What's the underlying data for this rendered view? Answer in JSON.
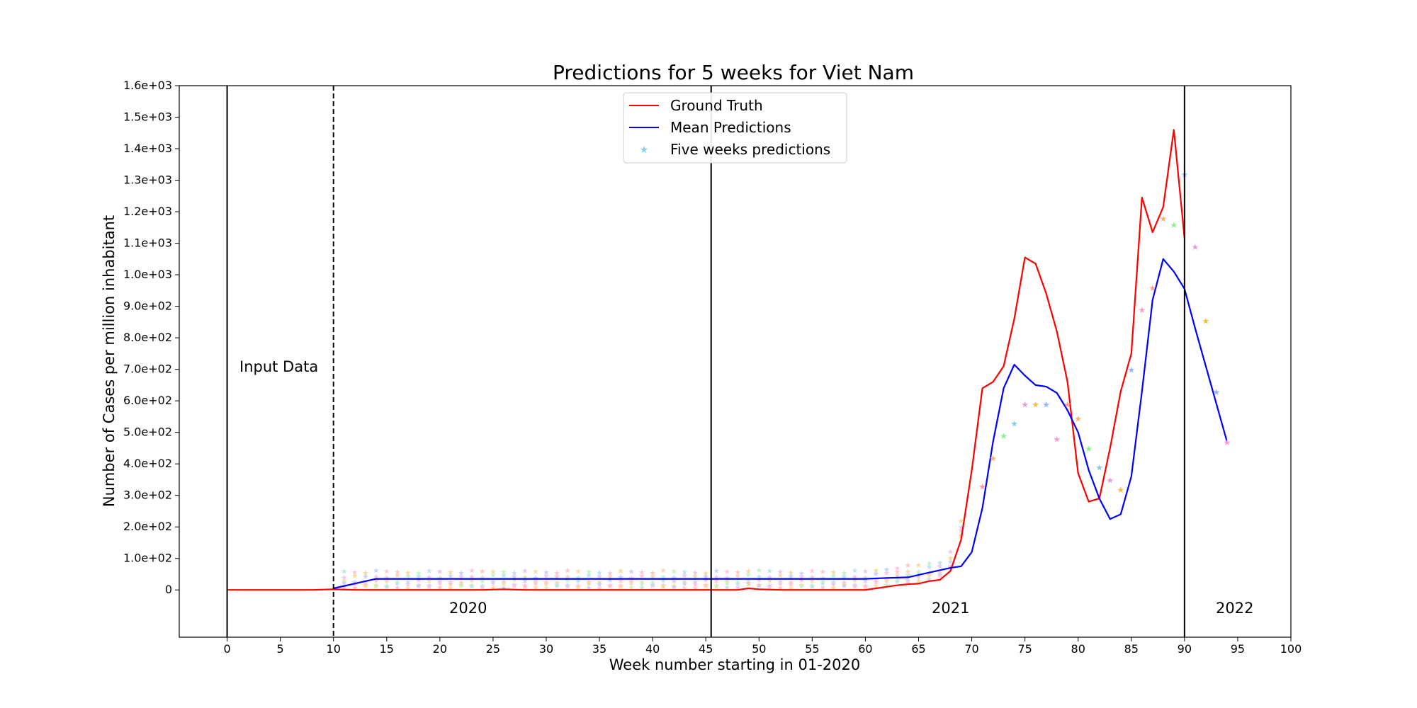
{
  "chart_data": {
    "type": "line",
    "title": "Predictions for 5 weeks for Viet Nam",
    "xlabel": "Week number starting in 01-2020",
    "ylabel": "Number of Cases per million inhabitant",
    "xlim": [
      -4.5,
      100
    ],
    "ylim": [
      -150,
      1600
    ],
    "x_ticks": [
      0,
      5,
      10,
      15,
      20,
      25,
      30,
      35,
      40,
      45,
      50,
      55,
      60,
      65,
      70,
      75,
      80,
      85,
      90,
      95,
      100
    ],
    "x_tick_labels": [
      "0",
      "5",
      "10",
      "15",
      "20",
      "25",
      "30",
      "35",
      "40",
      "45",
      "50",
      "55",
      "60",
      "65",
      "70",
      "75",
      "80",
      "85",
      "90",
      "95",
      "100"
    ],
    "y_ticks": [
      0,
      100,
      200,
      300,
      400,
      500,
      600,
      700,
      800,
      900,
      1000,
      1100,
      1200,
      1300,
      1400,
      1500,
      1600
    ],
    "y_tick_labels": [
      "0",
      "1.0e+02",
      "2.0e+02",
      "3.0e+02",
      "4.0e+02",
      "5.0e+02",
      "6.0e+02",
      "7.0e+02",
      "8.0e+02",
      "9.0e+02",
      "1.0e+03",
      "1.1e+03",
      "1.2e+03",
      "1.3e+03",
      "1.4e+03",
      "1.5e+03",
      "1.6e+03"
    ],
    "grid": false,
    "legend_position": "top-center",
    "series": [
      {
        "name": "Ground Truth",
        "style": "line",
        "color": "#ff0000",
        "x": [
          0,
          2,
          4,
          6,
          8,
          10,
          12,
          14,
          16,
          18,
          20,
          22,
          24,
          26,
          28,
          30,
          32,
          34,
          36,
          38,
          40,
          42,
          44,
          46,
          48,
          49,
          50,
          52,
          54,
          56,
          58,
          60,
          61,
          62,
          63,
          64,
          65,
          66,
          67,
          68,
          69,
          70,
          71,
          72,
          73,
          74,
          75,
          76,
          77,
          78,
          79,
          80,
          81,
          82,
          83,
          84,
          85,
          86,
          87,
          88,
          89,
          90
        ],
        "y": [
          0,
          0,
          0,
          0,
          0,
          2,
          0,
          0,
          0,
          0,
          0,
          0,
          0,
          2,
          0,
          0,
          0,
          0,
          0,
          0,
          0,
          0,
          0,
          0,
          0,
          5,
          2,
          0,
          0,
          0,
          0,
          0,
          5,
          10,
          15,
          18,
          20,
          28,
          32,
          60,
          160,
          380,
          640,
          660,
          710,
          860,
          1055,
          1035,
          940,
          820,
          660,
          370,
          280,
          290,
          450,
          630,
          750,
          1245,
          1135,
          1215,
          1460,
          1115
        ]
      },
      {
        "name": "Mean Predictions",
        "style": "line",
        "color": "#0000ff",
        "x": [
          10,
          12,
          14,
          16,
          18,
          20,
          22,
          24,
          26,
          28,
          30,
          32,
          34,
          36,
          38,
          40,
          42,
          44,
          46,
          48,
          50,
          52,
          54,
          56,
          58,
          60,
          62,
          64,
          66,
          68,
          69,
          70,
          71,
          72,
          73,
          74,
          75,
          76,
          77,
          78,
          79,
          80,
          81,
          82,
          83,
          84,
          85,
          86,
          87,
          88,
          89,
          90,
          91,
          92,
          93,
          94
        ],
        "y": [
          5,
          20,
          35,
          35,
          35,
          35,
          35,
          35,
          35,
          35,
          35,
          35,
          35,
          35,
          35,
          35,
          35,
          35,
          35,
          35,
          35,
          35,
          35,
          35,
          35,
          35,
          38,
          40,
          55,
          70,
          75,
          120,
          260,
          470,
          640,
          715,
          680,
          650,
          645,
          625,
          570,
          500,
          380,
          290,
          225,
          240,
          360,
          630,
          920,
          1050,
          1010,
          955,
          830,
          710,
          590,
          470
        ]
      },
      {
        "name": "Five weeks predictions",
        "style": "scatter-star",
        "color": "#87ceeb",
        "x": [
          71,
          72,
          73,
          74,
          75,
          76,
          77,
          78,
          79,
          80,
          81,
          82,
          83,
          84,
          85,
          86,
          87,
          88,
          89,
          90,
          91,
          92,
          93,
          94
        ],
        "y": [
          330,
          420,
          490,
          530,
          590,
          590,
          590,
          480,
          590,
          545,
          450,
          390,
          350,
          320,
          700,
          890,
          960,
          1180,
          1160,
          1320,
          1090,
          855,
          630,
          470
        ]
      }
    ],
    "annotations": [
      "Input Data",
      "2020",
      "2021",
      "2022"
    ],
    "vertical_lines": [
      {
        "x": 0,
        "style": "solid"
      },
      {
        "x": 10,
        "style": "dashed"
      },
      {
        "x": 45.5,
        "style": "solid"
      },
      {
        "x": 90,
        "style": "solid"
      }
    ]
  }
}
